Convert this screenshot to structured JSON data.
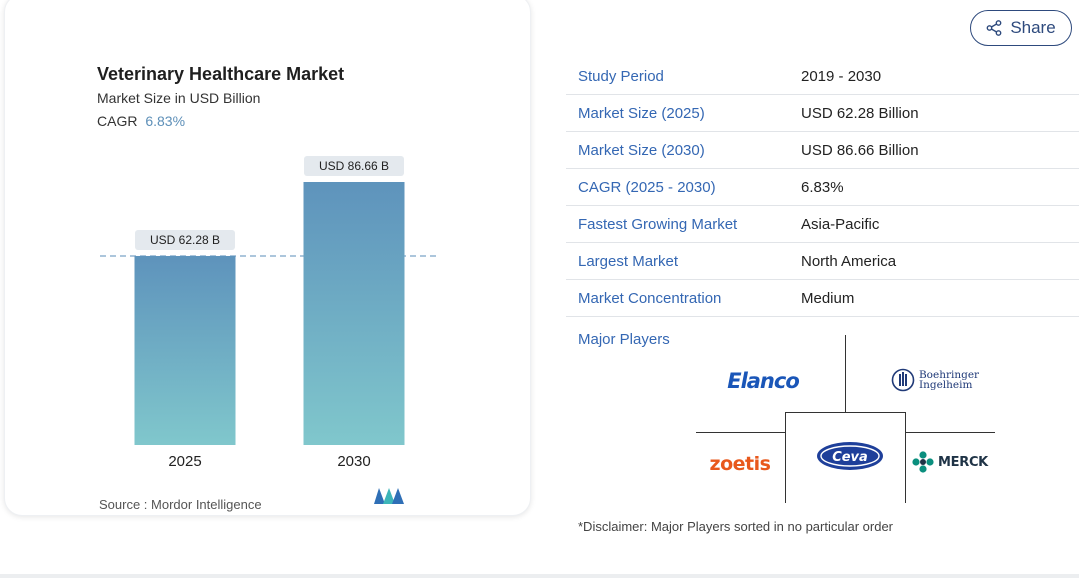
{
  "chart": {
    "title": "Veterinary Healthcare Market",
    "subtitle": "Market Size in USD Billion",
    "cagr_label": "CAGR",
    "cagr_value": "6.83%",
    "source": "Source :  Mordor Intelligence"
  },
  "chart_data": {
    "type": "bar",
    "categories": [
      "2025",
      "2030"
    ],
    "values": [
      62.28,
      86.66
    ],
    "data_labels": [
      "USD 62.28 B",
      "USD 86.66 B"
    ],
    "title": "Veterinary Healthcare Market",
    "ylabel": "Market Size in USD Billion",
    "reference_line": 62.28,
    "colors": [
      "#5e93bc",
      "#80c7cc"
    ]
  },
  "share": {
    "label": "Share"
  },
  "stats": [
    {
      "label": "Study Period",
      "value": "2019 - 2030"
    },
    {
      "label": "Market Size (2025)",
      "value": "USD 62.28 Billion"
    },
    {
      "label": "Market Size (2030)",
      "value": "USD 86.66 Billion"
    },
    {
      "label": "CAGR (2025 - 2030)",
      "value": "6.83%"
    },
    {
      "label": "Fastest Growing Market",
      "value": "Asia-Pacific"
    },
    {
      "label": "Largest Market",
      "value": "North America"
    },
    {
      "label": "Market Concentration",
      "value": "Medium"
    }
  ],
  "major_players": {
    "label": "Major Players",
    "logos": [
      "Elanco",
      "Boehringer Ingelheim",
      "zoetis",
      "Ceva",
      "MERCK"
    ],
    "boehringer_line1": "Boehringer",
    "boehringer_line2": "Ingelheim"
  },
  "disclaimer": "*Disclaimer: Major Players sorted in no particular order",
  "icons": {
    "share": "share-icon",
    "mordor": "mordor-logo-icon"
  }
}
